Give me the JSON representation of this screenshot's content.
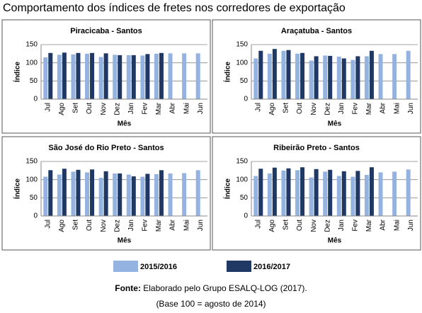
{
  "title": "Comportamento dos índices de fretes nos corredores de exportação",
  "chart_data": [
    {
      "type": "bar",
      "title": "Piracicaba - Santos",
      "ylabel": "Índice",
      "xlabel": "Mês",
      "categories": [
        "Jul",
        "Ago",
        "Set",
        "Out",
        "Nov",
        "Dez",
        "Jan",
        "Fev",
        "Mar",
        "Abr",
        "Mai",
        "Jun"
      ],
      "series": [
        {
          "name": "2015/2016",
          "color": "#95b3e0",
          "values": [
            115,
            122,
            123,
            125,
            116,
            122,
            121,
            120,
            125,
            126,
            126,
            126
          ]
        },
        {
          "name": "2016/2017",
          "color": "#1f3864",
          "values": [
            127,
            128,
            127,
            127,
            126,
            121,
            121,
            124,
            127,
            null,
            null,
            null
          ]
        }
      ],
      "ylim": [
        0,
        150
      ],
      "yticks": [
        0,
        50,
        100,
        150
      ],
      "grid": true
    },
    {
      "type": "bar",
      "title": "Araçatuba - Santos",
      "ylabel": "Índice",
      "xlabel": "Mês",
      "categories": [
        "Jul",
        "Ago",
        "Set",
        "Out",
        "Nov",
        "Dez",
        "Jan",
        "Fev",
        "Mar",
        "Abr",
        "Mai",
        "Jun"
      ],
      "series": [
        {
          "color": "#95b3e0",
          "values": [
            112,
            125,
            133,
            125,
            106,
            120,
            117,
            108,
            118,
            124,
            124,
            133
          ]
        },
        {
          "color": "#1f3864",
          "values": [
            133,
            138,
            135,
            127,
            118,
            119,
            112,
            118,
            133,
            null,
            null,
            null
          ]
        }
      ],
      "ylim": [
        0,
        150
      ],
      "yticks": [
        0,
        50,
        100,
        150
      ],
      "grid": true
    },
    {
      "type": "bar",
      "title": "São José do Rio Preto - Santos",
      "ylabel": "Índice",
      "xlabel": "Mês",
      "categories": [
        "Jul",
        "Ago",
        "Set",
        "Out",
        "Nov",
        "Dez",
        "Jan",
        "Fev",
        "Mar",
        "Abr",
        "Mai",
        "Jun"
      ],
      "series": [
        {
          "color": "#95b3e0",
          "values": [
            108,
            114,
            122,
            120,
            105,
            117,
            114,
            108,
            115,
            117,
            118,
            126
          ]
        },
        {
          "color": "#1f3864",
          "values": [
            126,
            130,
            127,
            128,
            123,
            117,
            109,
            116,
            126,
            null,
            null,
            null
          ]
        }
      ],
      "ylim": [
        0,
        150
      ],
      "yticks": [
        0,
        50,
        100,
        150
      ],
      "grid": true
    },
    {
      "type": "bar",
      "title": "Ribeirão Preto - Santos",
      "ylabel": "Índice",
      "xlabel": "Mês",
      "categories": [
        "Jul",
        "Ago",
        "Set",
        "Out",
        "Nov",
        "Dez",
        "Jan",
        "Fev",
        "Mar",
        "Abr",
        "Mai",
        "Jun"
      ],
      "series": [
        {
          "color": "#95b3e0",
          "values": [
            110,
            117,
            125,
            126,
            106,
            122,
            110,
            108,
            113,
            120,
            122,
            128
          ]
        },
        {
          "color": "#1f3864",
          "values": [
            130,
            133,
            131,
            134,
            129,
            127,
            123,
            124,
            134,
            null,
            null,
            null
          ]
        }
      ],
      "ylim": [
        0,
        150
      ],
      "yticks": [
        0,
        50,
        100,
        150
      ],
      "grid": true
    }
  ],
  "source": {
    "label": "Fonte:",
    "text": "Elaborado pelo Grupo ESALQ-LOG (2017)."
  },
  "note": "(Base 100 = agosto de 2014)"
}
